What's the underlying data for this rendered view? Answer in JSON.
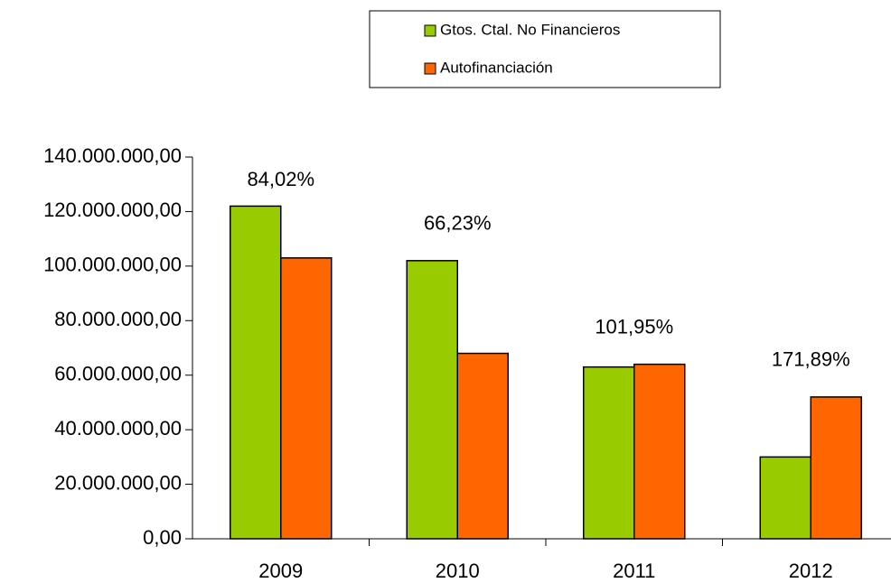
{
  "chart_data": {
    "type": "bar",
    "categories": [
      "2009",
      "2010",
      "2011",
      "2012"
    ],
    "series": [
      {
        "name": "Gtos. Ctal. No Financieros",
        "color": "#99cc00",
        "values": [
          122000000,
          102000000,
          63000000,
          30000000
        ]
      },
      {
        "name": "Autofinanciación",
        "color": "#ff6600",
        "values": [
          103000000,
          68000000,
          64000000,
          52000000
        ]
      }
    ],
    "annotations": [
      "84,02%",
      "66,23%",
      "101,95%",
      "171,89%"
    ],
    "ylim": [
      0,
      140000000
    ],
    "yticks": [
      {
        "value": 0,
        "label": "0,00"
      },
      {
        "value": 20000000,
        "label": "20.000.000,00"
      },
      {
        "value": 40000000,
        "label": "40.000.000,00"
      },
      {
        "value": 60000000,
        "label": "60.000.000,00"
      },
      {
        "value": 80000000,
        "label": "80.000.000,00"
      },
      {
        "value": 100000000,
        "label": "100.000.000,00"
      },
      {
        "value": 120000000,
        "label": "120.000.000,00"
      },
      {
        "value": 140000000,
        "label": "140.000.000,00"
      }
    ],
    "grid": false,
    "legend": "top"
  }
}
